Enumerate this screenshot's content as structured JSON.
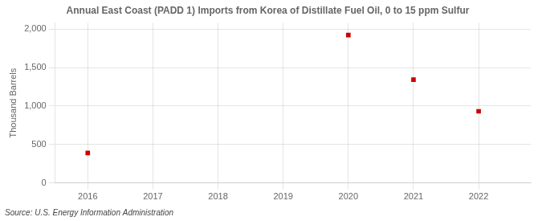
{
  "chart_data": {
    "type": "scatter",
    "title": "Annual East Coast (PADD 1) Imports from Korea of Distillate Fuel Oil, 0 to 15 ppm Sulfur",
    "y_label": "Thousand Barrels",
    "annotations": [
      "Source: U.S. Energy Information Administration"
    ],
    "x": [
      2016,
      2020,
      2021,
      2022
    ],
    "values": [
      390,
      1921,
      1342,
      932
    ],
    "color": "#cc0000",
    "marker": "square",
    "xlim": [
      2015.5,
      2022.8
    ],
    "xticks": [
      2016,
      2017,
      2018,
      2019,
      2020,
      2021,
      2022
    ],
    "ylim": [
      0,
      2080
    ],
    "yticks": [
      0,
      500,
      {
        "value": 1000,
        "label": "1,000"
      },
      {
        "value": 1500,
        "label": "1,500"
      },
      {
        "value": 2000,
        "label": "2,000"
      }
    ],
    "grid": true
  }
}
